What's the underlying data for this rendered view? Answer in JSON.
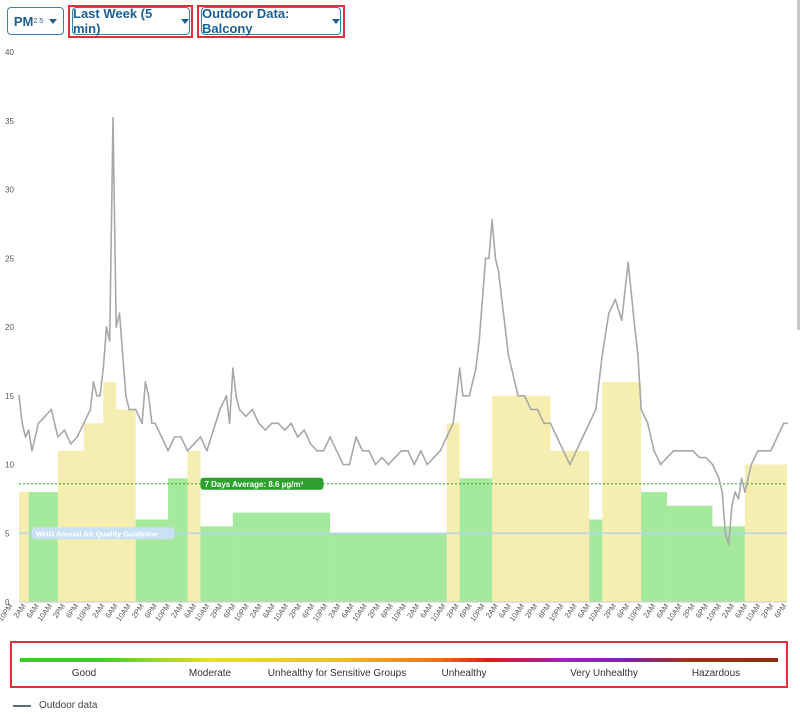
{
  "toolbar": {
    "pollutant": {
      "label": "PM",
      "sub": "2.5"
    },
    "period": {
      "label": "Last Week (5 min)"
    },
    "source": {
      "label": "Outdoor Data: Balcony"
    }
  },
  "chart_data": {
    "type": "line",
    "ylim": [
      0,
      40
    ],
    "yticks": [
      0,
      5,
      10,
      15,
      20,
      25,
      30,
      35,
      40
    ],
    "x_tick_labels": [
      "10PM",
      "2AM",
      "6AM",
      "10AM",
      "2PM",
      "6PM",
      "10PM",
      "2AM",
      "6AM",
      "10AM",
      "2PM",
      "6PM",
      "10PM",
      "2AM",
      "6AM",
      "10AM",
      "2PM",
      "6PM",
      "10PM",
      "2AM",
      "6AM",
      "10AM",
      "2PM",
      "6PM",
      "10PM",
      "2AM",
      "6AM",
      "10AM",
      "2PM",
      "6PM",
      "10PM",
      "2AM",
      "6AM",
      "10AM",
      "2PM",
      "6PM",
      "10PM",
      "2AM",
      "6AM",
      "10AM",
      "2PM",
      "6PM",
      "10PM",
      "2AM",
      "6AM",
      "10AM",
      "2PM",
      "6PM",
      "10PM",
      "2AM",
      "6AM",
      "10AM",
      "2PM",
      "6PM",
      "10PM",
      "2AM",
      "6AM",
      "10AM",
      "2PM",
      "6PM"
    ],
    "x_hours_span": [
      0,
      237
    ],
    "series": [
      {
        "name": "Outdoor data",
        "color": "#a8a8a8",
        "points": [
          [
            0,
            15
          ],
          [
            1,
            13
          ],
          [
            2,
            12
          ],
          [
            3,
            12.5
          ],
          [
            4,
            11
          ],
          [
            5,
            12
          ],
          [
            6,
            13
          ],
          [
            8,
            13.5
          ],
          [
            10,
            14
          ],
          [
            11,
            13
          ],
          [
            12,
            12
          ],
          [
            14,
            12.5
          ],
          [
            16,
            11.5
          ],
          [
            18,
            12
          ],
          [
            20,
            13
          ],
          [
            22,
            14
          ],
          [
            23,
            16
          ],
          [
            24,
            15
          ],
          [
            25,
            15
          ],
          [
            26,
            17
          ],
          [
            27,
            20
          ],
          [
            28,
            19
          ],
          [
            29,
            35.2
          ],
          [
            30,
            20
          ],
          [
            31,
            21
          ],
          [
            32,
            18
          ],
          [
            33,
            15
          ],
          [
            34,
            14
          ],
          [
            36,
            14
          ],
          [
            38,
            13
          ],
          [
            39,
            16
          ],
          [
            40,
            15
          ],
          [
            41,
            13
          ],
          [
            42,
            13
          ],
          [
            44,
            12
          ],
          [
            46,
            11
          ],
          [
            48,
            12
          ],
          [
            50,
            12
          ],
          [
            52,
            11
          ],
          [
            54,
            11.5
          ],
          [
            56,
            12
          ],
          [
            58,
            11
          ],
          [
            60,
            12.5
          ],
          [
            62,
            14
          ],
          [
            64,
            15
          ],
          [
            65,
            13
          ],
          [
            66,
            17
          ],
          [
            67,
            15
          ],
          [
            68,
            14
          ],
          [
            70,
            13.5
          ],
          [
            72,
            14
          ],
          [
            74,
            13
          ],
          [
            76,
            12.5
          ],
          [
            78,
            13
          ],
          [
            80,
            13
          ],
          [
            82,
            12.5
          ],
          [
            84,
            13
          ],
          [
            86,
            12
          ],
          [
            88,
            12.5
          ],
          [
            90,
            11.5
          ],
          [
            92,
            11
          ],
          [
            94,
            11
          ],
          [
            96,
            12
          ],
          [
            98,
            11
          ],
          [
            100,
            10
          ],
          [
            102,
            10
          ],
          [
            104,
            12
          ],
          [
            106,
            11
          ],
          [
            108,
            11
          ],
          [
            110,
            10
          ],
          [
            112,
            10.5
          ],
          [
            114,
            10
          ],
          [
            116,
            10.5
          ],
          [
            118,
            11
          ],
          [
            120,
            11
          ],
          [
            122,
            10
          ],
          [
            124,
            11
          ],
          [
            126,
            10
          ],
          [
            128,
            10.5
          ],
          [
            130,
            11
          ],
          [
            132,
            12
          ],
          [
            134,
            13
          ],
          [
            135,
            15
          ],
          [
            136,
            17
          ],
          [
            137,
            15
          ],
          [
            138,
            15
          ],
          [
            139,
            15
          ],
          [
            140,
            16
          ],
          [
            141,
            17
          ],
          [
            142,
            19
          ],
          [
            143,
            22
          ],
          [
            144,
            25
          ],
          [
            145,
            25
          ],
          [
            146,
            27.8
          ],
          [
            147,
            25
          ],
          [
            148,
            24
          ],
          [
            149,
            22
          ],
          [
            150,
            20
          ],
          [
            151,
            18
          ],
          [
            152,
            17
          ],
          [
            153,
            16
          ],
          [
            154,
            15
          ],
          [
            156,
            15
          ],
          [
            158,
            14
          ],
          [
            160,
            14
          ],
          [
            162,
            13
          ],
          [
            164,
            13
          ],
          [
            166,
            12
          ],
          [
            168,
            11
          ],
          [
            170,
            10
          ],
          [
            172,
            11
          ],
          [
            174,
            12
          ],
          [
            176,
            13
          ],
          [
            178,
            14
          ],
          [
            180,
            18
          ],
          [
            182,
            21
          ],
          [
            184,
            22
          ],
          [
            186,
            20.5
          ],
          [
            188,
            24.7
          ],
          [
            190,
            20
          ],
          [
            191,
            18
          ],
          [
            192,
            14
          ],
          [
            194,
            13
          ],
          [
            196,
            11
          ],
          [
            198,
            10
          ],
          [
            200,
            10.5
          ],
          [
            202,
            11
          ],
          [
            204,
            11
          ],
          [
            206,
            11
          ],
          [
            208,
            11
          ],
          [
            210,
            10.5
          ],
          [
            212,
            10.5
          ],
          [
            214,
            10
          ],
          [
            216,
            9
          ],
          [
            217,
            8
          ],
          [
            218,
            5
          ],
          [
            219,
            4.2
          ],
          [
            220,
            7
          ],
          [
            221,
            8
          ],
          [
            222,
            7.5
          ],
          [
            223,
            9
          ],
          [
            224,
            8
          ],
          [
            225,
            9
          ],
          [
            226,
            10
          ],
          [
            228,
            11
          ],
          [
            230,
            11
          ],
          [
            232,
            11
          ],
          [
            234,
            12
          ],
          [
            236,
            13
          ],
          [
            237,
            13
          ]
        ]
      }
    ],
    "reference_lines": [
      {
        "label": "7 Days Average: 8.6 µg/m³",
        "value": 8.6,
        "color": "#2ea02e"
      },
      {
        "label": "WHO Annual Air Quality Guideline",
        "value": 5,
        "color": "#b8d4ee"
      }
    ],
    "background_bands": [
      {
        "x0": 0,
        "x1": 3,
        "value": 8,
        "category": "Moderate"
      },
      {
        "x0": 3,
        "x1": 12,
        "value": 8,
        "category": "Good"
      },
      {
        "x0": 12,
        "x1": 20,
        "value": 11,
        "category": "Moderate"
      },
      {
        "x0": 20,
        "x1": 26,
        "value": 13,
        "category": "Moderate"
      },
      {
        "x0": 26,
        "x1": 30,
        "value": 16,
        "category": "Moderate"
      },
      {
        "x0": 30,
        "x1": 36,
        "value": 14,
        "category": "Moderate"
      },
      {
        "x0": 36,
        "x1": 46,
        "value": 6,
        "category": "Good"
      },
      {
        "x0": 46,
        "x1": 52,
        "value": 9,
        "category": "Good"
      },
      {
        "x0": 52,
        "x1": 56,
        "value": 11,
        "category": "Moderate"
      },
      {
        "x0": 56,
        "x1": 66,
        "value": 5.5,
        "category": "Good"
      },
      {
        "x0": 66,
        "x1": 96,
        "value": 6.5,
        "category": "Good"
      },
      {
        "x0": 96,
        "x1": 132,
        "value": 5,
        "category": "Good"
      },
      {
        "x0": 132,
        "x1": 136,
        "value": 13,
        "category": "Moderate"
      },
      {
        "x0": 136,
        "x1": 146,
        "value": 9,
        "category": "Good"
      },
      {
        "x0": 146,
        "x1": 164,
        "value": 15,
        "category": "Moderate"
      },
      {
        "x0": 164,
        "x1": 176,
        "value": 11,
        "category": "Moderate"
      },
      {
        "x0": 176,
        "x1": 180,
        "value": 6,
        "category": "Good"
      },
      {
        "x0": 180,
        "x1": 192,
        "value": 16,
        "category": "Moderate"
      },
      {
        "x0": 192,
        "x1": 200,
        "value": 8,
        "category": "Good"
      },
      {
        "x0": 200,
        "x1": 214,
        "value": 7,
        "category": "Good"
      },
      {
        "x0": 214,
        "x1": 224,
        "value": 5.5,
        "category": "Good"
      },
      {
        "x0": 224,
        "x1": 237,
        "value": 10,
        "category": "Moderate"
      }
    ]
  },
  "aqi_scale": {
    "labels": [
      "Good",
      "Moderate",
      "Unhealthy for Sensitive Groups",
      "Unhealthy",
      "Very Unhealthy",
      "Hazardous"
    ]
  },
  "legend": {
    "series_label": "Outdoor data"
  },
  "colors": {
    "good": "#5bd84b",
    "moderate": "#ece070",
    "line": "#a8a8a8",
    "accent": "#1b5f93",
    "highlight": "#e0303a"
  }
}
